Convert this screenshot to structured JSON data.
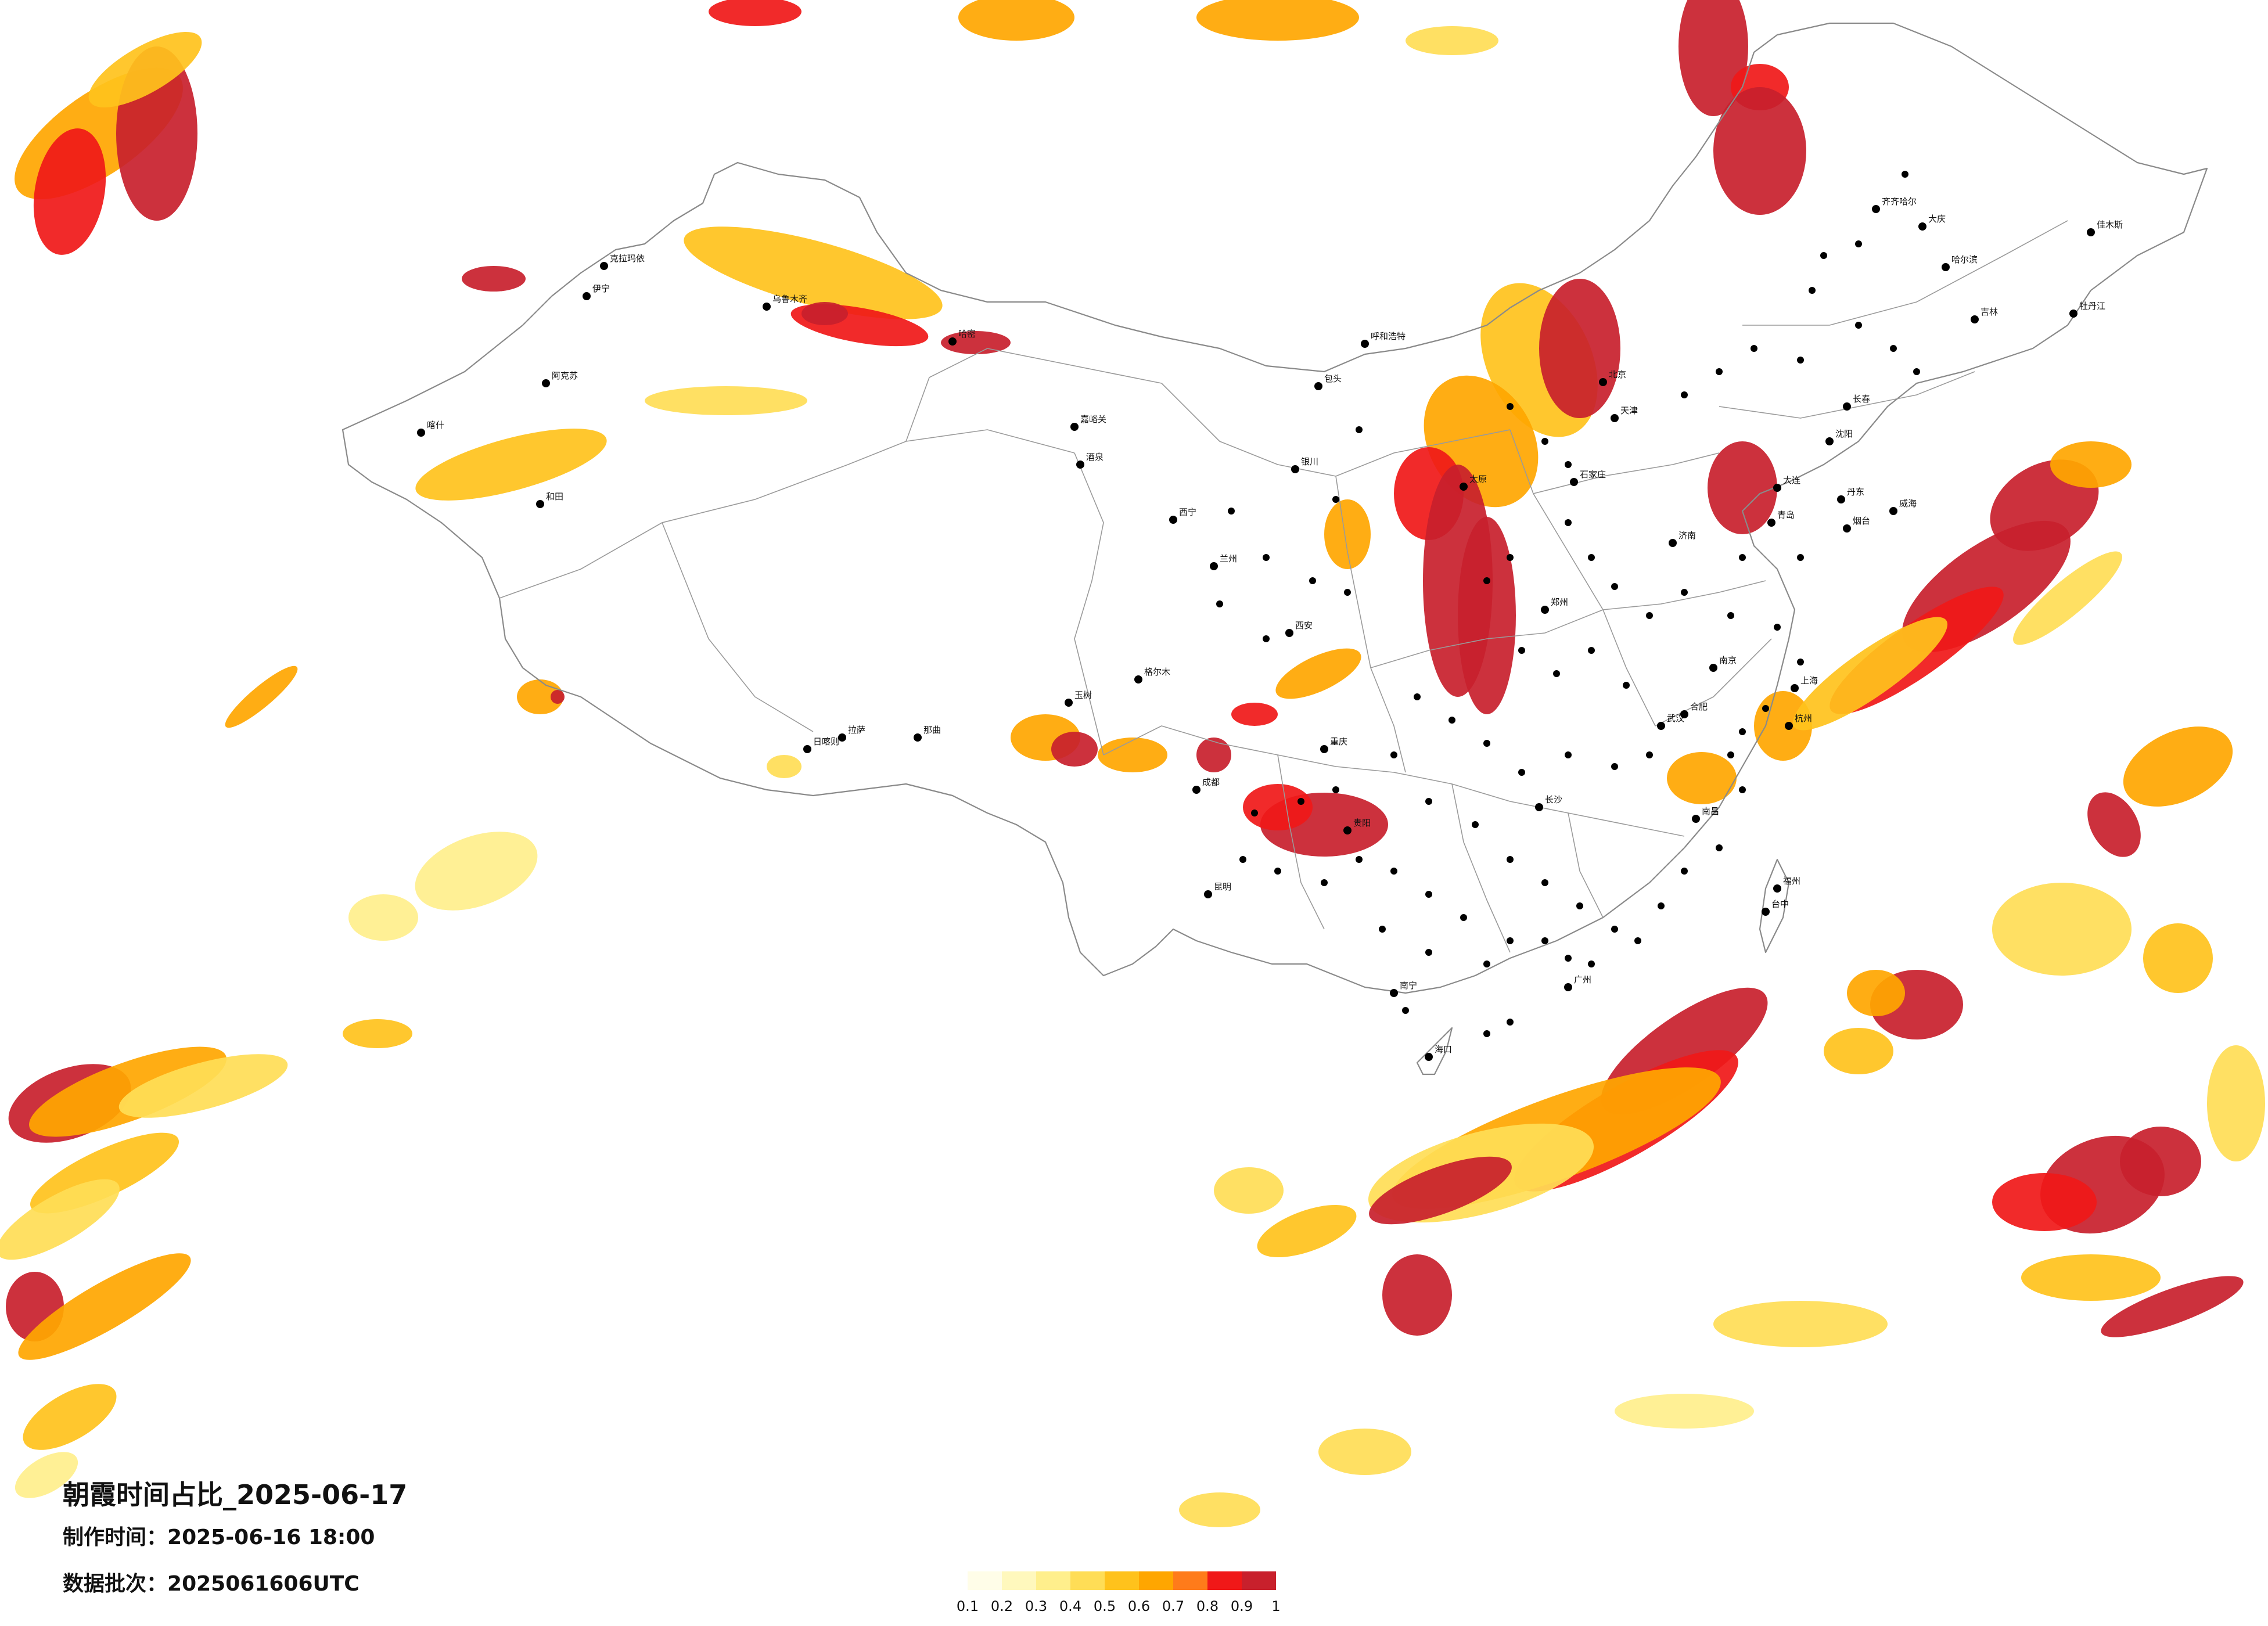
{
  "title": "朝霞时间占比_2025-06-17",
  "made_time_label": "制作时间：",
  "made_time_value": "2025-06-16 18:00",
  "batch_label": "数据批次：",
  "batch_value": "2025061606UTC",
  "legend": {
    "colors": [
      "#fffde8",
      "#fff8bd",
      "#ffef8c",
      "#ffdd56",
      "#ffc21c",
      "#ffa600",
      "#ff7b1a",
      "#f01818",
      "#c8202c"
    ],
    "ticks": [
      "0.1",
      "0.2",
      "0.3",
      "0.4",
      "0.5",
      "0.6",
      "0.7",
      "0.8",
      "0.9",
      "1"
    ]
  },
  "cities": [
    "克拉玛依",
    "伊宁",
    "乌鲁木齐",
    "阿克苏",
    "喀什",
    "和田",
    "哈密",
    "嘉峪关",
    "酒泉",
    "西宁",
    "兰州",
    "银川",
    "呼和浩特",
    "包头",
    "太原",
    "北京",
    "天津",
    "石家庄",
    "济南",
    "郑州",
    "西安",
    "成都",
    "重庆",
    "贵阳",
    "昆明",
    "南宁",
    "广州",
    "海口",
    "长沙",
    "武汉",
    "南昌",
    "福州",
    "杭州",
    "上海",
    "南京",
    "合肥",
    "沈阳",
    "长春",
    "哈尔滨",
    "拉萨",
    "日喀则",
    "那曲",
    "玉树",
    "格尔木",
    "台中",
    "齐齐哈尔",
    "大庆",
    "佳木斯",
    "牡丹江",
    "吉林",
    "丹东",
    "烟台",
    "威海",
    "青岛",
    "大连"
  ]
}
